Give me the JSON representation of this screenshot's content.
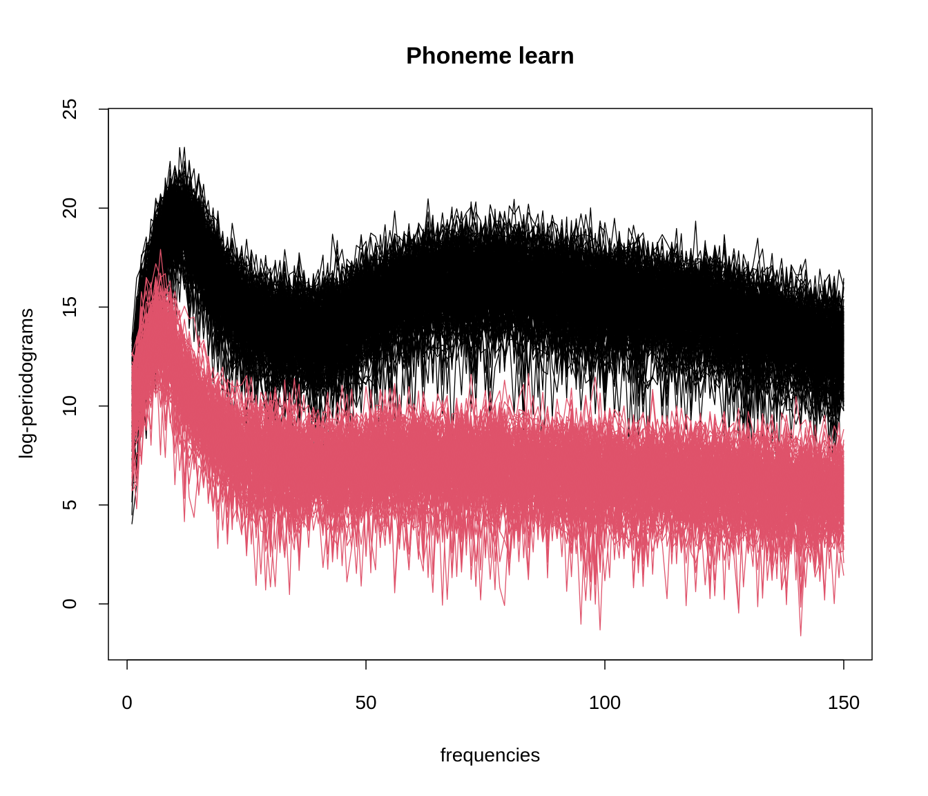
{
  "chart_data": {
    "type": "line",
    "title": "Phoneme learn",
    "xlabel": "frequencies",
    "ylabel": "log-periodograms",
    "xlim": [
      1,
      150
    ],
    "ylim": [
      -2,
      25
    ],
    "x_ticks": [
      "0",
      "50",
      "100",
      "150"
    ],
    "x_tick_values": [
      0,
      50,
      100,
      150
    ],
    "y_ticks": [
      "0",
      "5",
      "10",
      "15",
      "20",
      "25"
    ],
    "y_tick_values": [
      0,
      5,
      10,
      15,
      20,
      25
    ],
    "grid": false,
    "legend": "none",
    "x_points": 150,
    "classes": [
      {
        "color": "#000000",
        "curves": 200,
        "profile_x": [
          1,
          3,
          6,
          9,
          12,
          16,
          20,
          25,
          30,
          35,
          40,
          45,
          50,
          55,
          60,
          65,
          70,
          75,
          80,
          85,
          90,
          95,
          100,
          105,
          110,
          115,
          120,
          125,
          130,
          135,
          140,
          145,
          150
        ],
        "mean": [
          10.5,
          14,
          17.5,
          19.5,
          19.5,
          17.8,
          16,
          14.8,
          14,
          13.8,
          13.8,
          14.2,
          15,
          15.6,
          16,
          16.3,
          16.5,
          16.5,
          16.4,
          16.2,
          16,
          15.8,
          15.6,
          15.4,
          15.3,
          15.1,
          14.9,
          14.6,
          14.3,
          14,
          13.6,
          13.3,
          13
        ],
        "spread": [
          2.5,
          3,
          2.2,
          1.5,
          1.5,
          1.6,
          1.6,
          1.8,
          1.9,
          2,
          2,
          2,
          2,
          2,
          2,
          2,
          2,
          2,
          2,
          2,
          2,
          2,
          2,
          2,
          2,
          2,
          2,
          2,
          2,
          2,
          2,
          2,
          2
        ],
        "range": [
          1.8,
          24
        ]
      },
      {
        "color": "#DF536B",
        "curves": 150,
        "profile_x": [
          1,
          3,
          6,
          9,
          12,
          16,
          20,
          25,
          30,
          35,
          40,
          45,
          50,
          55,
          60,
          65,
          70,
          75,
          80,
          85,
          90,
          95,
          100,
          105,
          110,
          115,
          120,
          125,
          130,
          135,
          140,
          145,
          150
        ],
        "mean": [
          10,
          11.5,
          13.5,
          13,
          11,
          9.5,
          8.3,
          7.6,
          7.3,
          7.1,
          7,
          7,
          7.1,
          7.2,
          7.2,
          7.1,
          7.1,
          7,
          6.9,
          6.8,
          6.7,
          6.6,
          6.5,
          6.4,
          6.4,
          6.3,
          6.2,
          6.1,
          6,
          5.9,
          5.8,
          5.7,
          5.6
        ],
        "spread": [
          2,
          2.2,
          2,
          2,
          1.9,
          1.7,
          1.7,
          1.8,
          1.8,
          1.8,
          1.8,
          1.8,
          1.8,
          1.8,
          1.8,
          1.8,
          1.8,
          1.8,
          1.8,
          1.8,
          1.8,
          1.8,
          1.8,
          1.8,
          1.8,
          1.8,
          1.8,
          1.8,
          1.8,
          1.8,
          1.8,
          1.8,
          1.8
        ],
        "range": [
          -1.8,
          18.8
        ]
      }
    ]
  }
}
